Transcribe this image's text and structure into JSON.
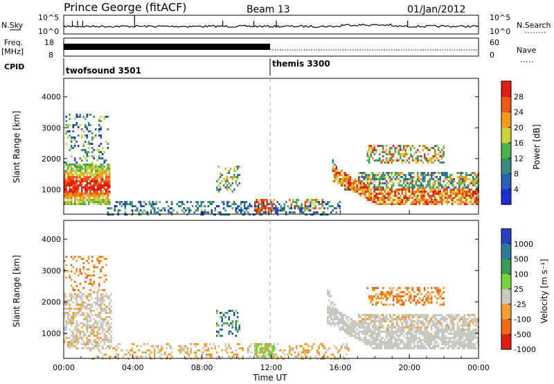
{
  "header": {
    "station": "Prince George (fitACF)",
    "beam": "Beam 13",
    "date": "01/Jan/2012"
  },
  "strips": {
    "nsky_label": "N.Sky",
    "nsky_ticks": [
      "10^5",
      "10^0"
    ],
    "nsearch_label": "N.Search",
    "nsearch_ticks": [
      "10^5",
      "10^0"
    ],
    "freq_label": "Freq.",
    "freq_unit": "[MHz]",
    "freq_ticks": [
      "18",
      "8"
    ],
    "nave_label": "Nave",
    "nave_ticks": [
      "60",
      "0"
    ],
    "cpid_label": "CPID",
    "cpid_modes": [
      "twofsound 3501",
      "themis 3300"
    ]
  },
  "chart_data": [
    {
      "type": "heatmap",
      "name": "power",
      "ylabel": "Slant Range [km]",
      "ylim": [
        200,
        4600
      ],
      "yticks": [
        "1000",
        "2000",
        "3000",
        "4000"
      ],
      "xlim": [
        0,
        24
      ],
      "colorbar": {
        "label": "Power [dB]",
        "ticks": [
          "4",
          "8",
          "12",
          "16",
          "20",
          "24",
          "28"
        ],
        "colors": [
          "#1e2fd0",
          "#2c5fb3",
          "#3a8a80",
          "#4ab24a",
          "#c9d23a",
          "#f29a1f",
          "#ee5a14",
          "#e01f14"
        ]
      }
    },
    {
      "type": "heatmap",
      "name": "velocity",
      "ylabel": "Slant Range [km]",
      "ylim": [
        200,
        4600
      ],
      "yticks": [
        "1000",
        "2000",
        "3000",
        "4000"
      ],
      "xlim": [
        0,
        24
      ],
      "xlabel": "Time UT",
      "xticks": [
        "00:00",
        "04:00",
        "08:00",
        "12:00",
        "16:00",
        "20:00",
        "00:00"
      ],
      "colorbar": {
        "label": "Velocity [m s⁻¹]",
        "ticks": [
          "1000",
          "500",
          "100",
          "25",
          "-25",
          "-100",
          "-500",
          "-1000"
        ],
        "colors": [
          "#2a3fc0",
          "#2f7a9c",
          "#3d9a56",
          "#7ad040",
          "#c8c8c0",
          "#f0a030",
          "#ee6a18",
          "#e01c14"
        ]
      }
    }
  ]
}
